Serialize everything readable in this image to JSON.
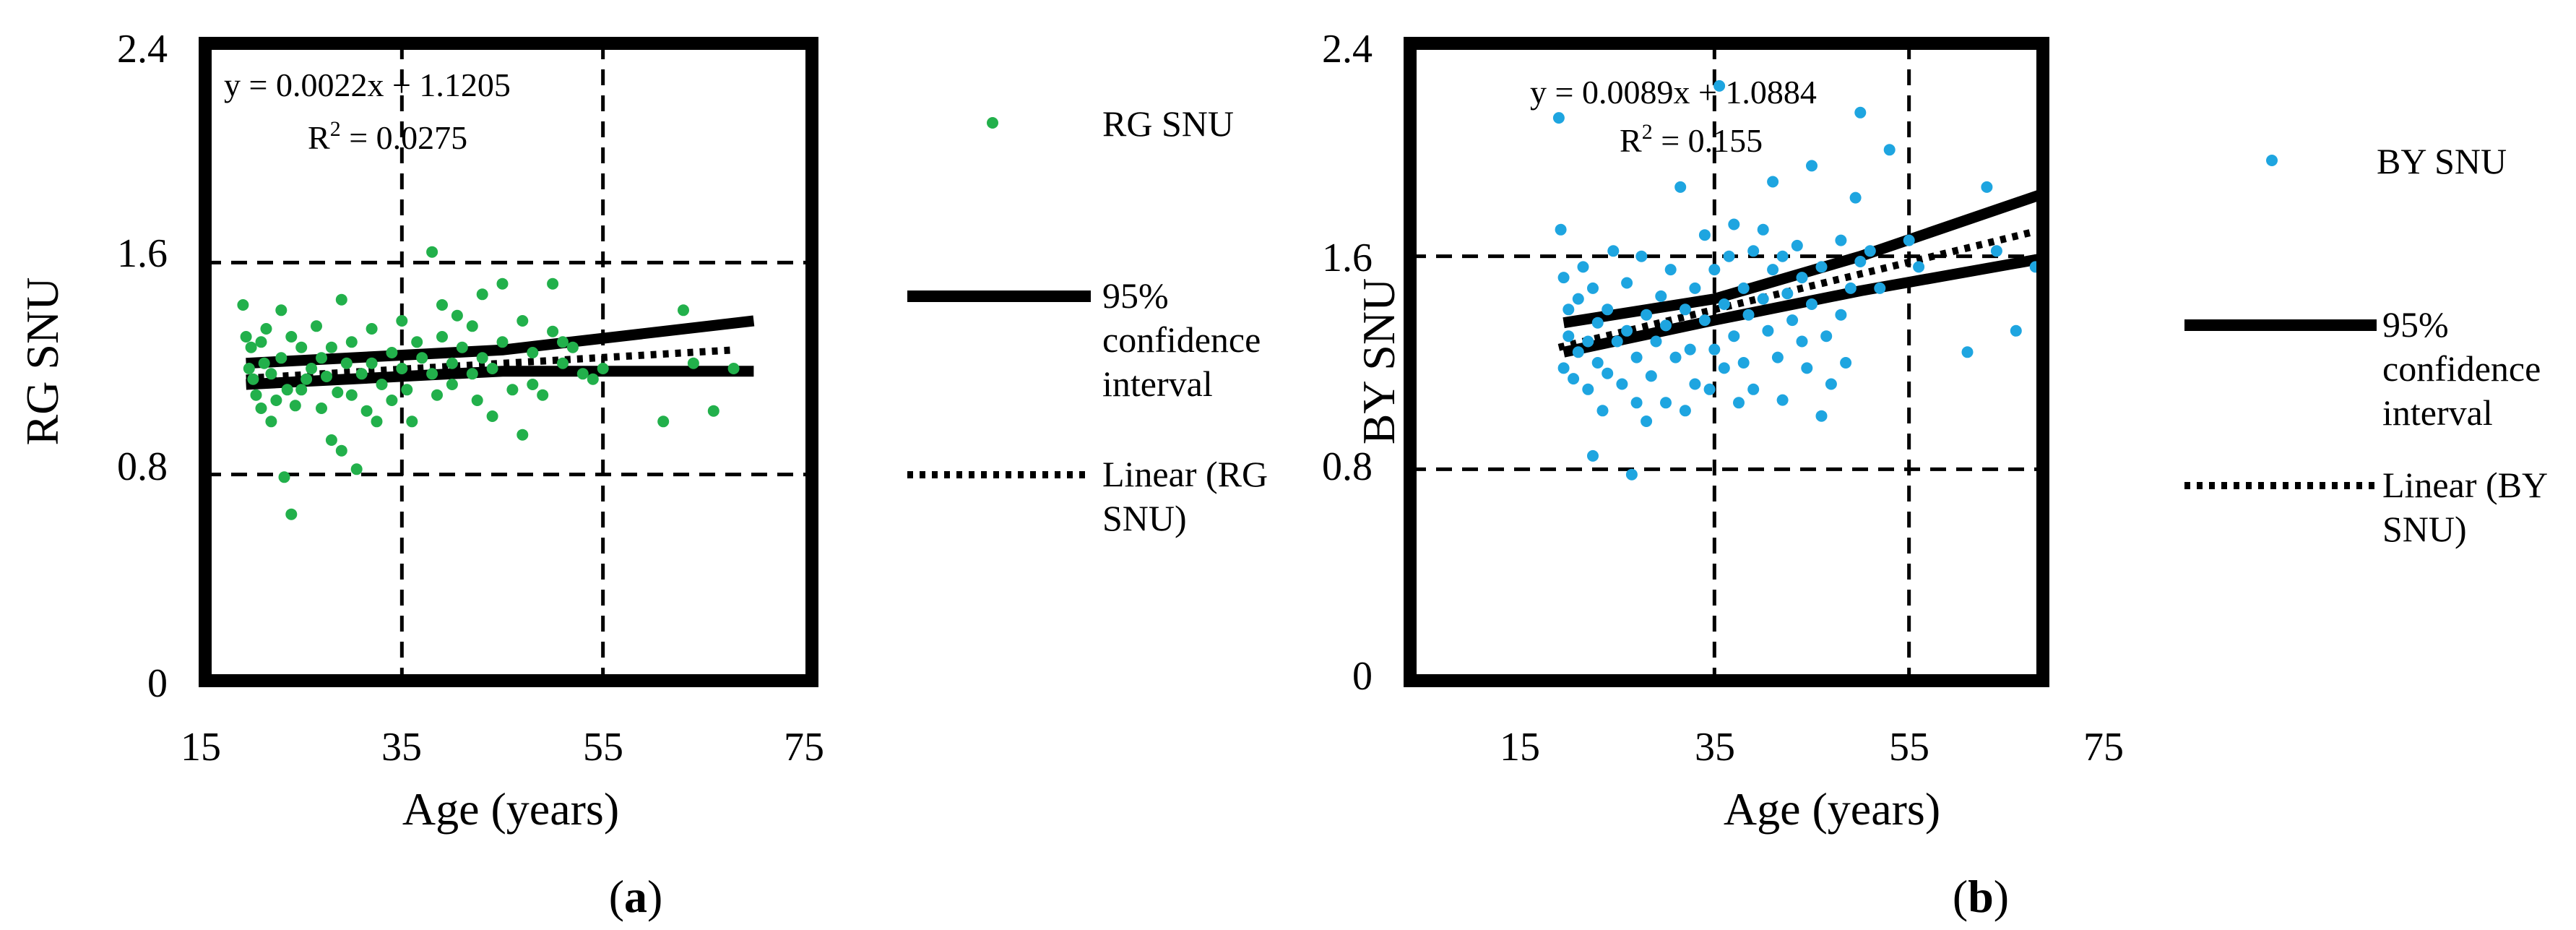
{
  "chart_data": [
    {
      "type": "scatter",
      "panel_label": "a",
      "xlabel": "Age (years)",
      "ylabel": "RG SNU",
      "xlim": [
        15,
        75
      ],
      "ylim": [
        0,
        2.4
      ],
      "xticks": [
        "15",
        "35",
        "55",
        "75"
      ],
      "yticks": [
        "0",
        "0.8",
        "1.6",
        "2.4"
      ],
      "grid": "dashed, both axes",
      "equation": "y = 0.0022x + 1.1205",
      "r2_prefix": "R",
      "r2_sup": "2",
      "r2_value": " = 0.0275",
      "legend_position": "right",
      "legend": {
        "scatter": "RG SNU",
        "ci": [
          "95%",
          "confidence",
          "interval"
        ],
        "linear": [
          "Linear (RG",
          "SNU)"
        ]
      },
      "colors": {
        "points": "#22b04b",
        "lines": "#000000"
      },
      "trend": {
        "slope": 0.0022,
        "intercept": 1.1205,
        "x": [
          19.5,
          68
        ]
      },
      "ci_upper": [
        [
          19.5,
          1.22
        ],
        [
          45,
          1.27
        ],
        [
          70,
          1.38
        ]
      ],
      "ci_lower": [
        [
          19.5,
          1.14
        ],
        [
          45,
          1.19
        ],
        [
          70,
          1.19
        ]
      ],
      "points": [
        [
          19.2,
          1.44
        ],
        [
          19.5,
          1.32
        ],
        [
          19.8,
          1.2
        ],
        [
          20,
          1.28
        ],
        [
          20.2,
          1.16
        ],
        [
          20.5,
          1.1
        ],
        [
          21,
          1.3
        ],
        [
          21,
          1.05
        ],
        [
          21.3,
          1.22
        ],
        [
          21.5,
          1.35
        ],
        [
          22,
          1.18
        ],
        [
          22,
          1.0
        ],
        [
          22.5,
          1.08
        ],
        [
          23,
          1.42
        ],
        [
          23,
          1.24
        ],
        [
          23.3,
          0.79
        ],
        [
          23.6,
          1.12
        ],
        [
          24,
          0.65
        ],
        [
          24,
          1.32
        ],
        [
          24.4,
          1.06
        ],
        [
          25,
          1.28
        ],
        [
          25,
          1.12
        ],
        [
          25.5,
          1.16
        ],
        [
          26,
          1.2
        ],
        [
          26.5,
          1.36
        ],
        [
          27,
          1.05
        ],
        [
          27,
          1.24
        ],
        [
          27.5,
          1.17
        ],
        [
          28,
          0.93
        ],
        [
          28,
          1.28
        ],
        [
          28.6,
          1.11
        ],
        [
          29,
          1.46
        ],
        [
          29,
          0.89
        ],
        [
          29.5,
          1.22
        ],
        [
          30,
          1.1
        ],
        [
          30,
          1.3
        ],
        [
          30.5,
          0.82
        ],
        [
          31,
          1.18
        ],
        [
          31.5,
          1.04
        ],
        [
          32,
          1.35
        ],
        [
          32,
          1.22
        ],
        [
          32.5,
          1.0
        ],
        [
          33,
          1.14
        ],
        [
          34,
          1.26
        ],
        [
          34,
          1.08
        ],
        [
          35,
          1.38
        ],
        [
          35,
          1.2
        ],
        [
          35.5,
          1.12
        ],
        [
          36,
          1.0
        ],
        [
          36.5,
          1.3
        ],
        [
          37,
          1.24
        ],
        [
          38,
          1.64
        ],
        [
          38,
          1.18
        ],
        [
          38.5,
          1.1
        ],
        [
          39,
          1.32
        ],
        [
          39,
          1.44
        ],
        [
          40,
          1.22
        ],
        [
          40,
          1.14
        ],
        [
          40.5,
          1.4
        ],
        [
          41,
          1.28
        ],
        [
          42,
          1.36
        ],
        [
          42,
          1.18
        ],
        [
          42.5,
          1.08
        ],
        [
          43,
          1.48
        ],
        [
          43,
          1.24
        ],
        [
          44,
          1.2
        ],
        [
          44,
          1.02
        ],
        [
          45,
          1.52
        ],
        [
          45,
          1.3
        ],
        [
          46,
          1.12
        ],
        [
          47,
          1.38
        ],
        [
          47,
          0.95
        ],
        [
          48,
          1.26
        ],
        [
          48,
          1.14
        ],
        [
          49,
          1.1
        ],
        [
          50,
          1.34
        ],
        [
          50,
          1.52
        ],
        [
          51,
          1.22
        ],
        [
          51,
          1.3
        ],
        [
          52,
          1.28
        ],
        [
          53,
          1.18
        ],
        [
          54,
          1.16
        ],
        [
          55,
          1.2
        ],
        [
          61,
          1.0
        ],
        [
          63,
          1.42
        ],
        [
          64,
          1.22
        ],
        [
          66,
          1.04
        ],
        [
          68,
          1.2
        ]
      ]
    },
    {
      "type": "scatter",
      "panel_label": "b",
      "xlabel": "Age (years)",
      "ylabel": "BY SNU",
      "xlim": [
        15,
        75
      ],
      "ylim": [
        0,
        2.4
      ],
      "xticks": [
        "15",
        "35",
        "55",
        "75"
      ],
      "yticks": [
        "0",
        "0.8",
        "1.6",
        "2.4"
      ],
      "grid": "dashed, both axes",
      "equation": "y = 0.0089x + 1.0884",
      "r2_prefix": "R",
      "r2_sup": "2",
      "r2_value": " = 0.155",
      "legend_position": "right",
      "legend": {
        "scatter": "BY SNU",
        "ci": [
          "95%",
          "confidence",
          "interval"
        ],
        "linear": [
          "Linear (BY",
          "SNU)"
        ]
      },
      "colors": {
        "points": "#1ea5e0",
        "lines": "#000000"
      },
      "trend": {
        "slope": 0.0089,
        "intercept": 1.0884,
        "x": [
          19,
          68
        ]
      },
      "ci_upper": [
        [
          19.5,
          1.35
        ],
        [
          35,
          1.44
        ],
        [
          50,
          1.6
        ],
        [
          70,
          1.85
        ]
      ],
      "ci_lower": [
        [
          19.5,
          1.24
        ],
        [
          35,
          1.36
        ],
        [
          50,
          1.47
        ],
        [
          70,
          1.6
        ]
      ],
      "points": [
        [
          19,
          2.12
        ],
        [
          19.2,
          1.7
        ],
        [
          19.5,
          1.52
        ],
        [
          19.5,
          1.18
        ],
        [
          20,
          1.4
        ],
        [
          20,
          1.3
        ],
        [
          20.5,
          1.14
        ],
        [
          21,
          1.44
        ],
        [
          21,
          1.24
        ],
        [
          21.5,
          1.56
        ],
        [
          22,
          1.28
        ],
        [
          22,
          1.1
        ],
        [
          22.5,
          1.48
        ],
        [
          22.5,
          0.85
        ],
        [
          23,
          1.35
        ],
        [
          23,
          1.2
        ],
        [
          23.5,
          1.02
        ],
        [
          24,
          1.16
        ],
        [
          24,
          1.4
        ],
        [
          24.6,
          1.62
        ],
        [
          25,
          1.28
        ],
        [
          25.5,
          1.12
        ],
        [
          26,
          1.5
        ],
        [
          26,
          1.32
        ],
        [
          26.5,
          0.78
        ],
        [
          27,
          1.05
        ],
        [
          27,
          1.22
        ],
        [
          27.5,
          1.6
        ],
        [
          28,
          1.38
        ],
        [
          28,
          0.98
        ],
        [
          28.5,
          1.15
        ],
        [
          29,
          1.28
        ],
        [
          29.5,
          1.45
        ],
        [
          30,
          1.05
        ],
        [
          30,
          1.34
        ],
        [
          30.5,
          1.55
        ],
        [
          31,
          1.22
        ],
        [
          31.5,
          1.86
        ],
        [
          32,
          1.02
        ],
        [
          32,
          1.4
        ],
        [
          32.5,
          1.25
        ],
        [
          33,
          1.48
        ],
        [
          33,
          1.12
        ],
        [
          34,
          1.68
        ],
        [
          34,
          1.36
        ],
        [
          34.5,
          1.1
        ],
        [
          35,
          1.55
        ],
        [
          35,
          1.25
        ],
        [
          35.5,
          2.24
        ],
        [
          36,
          1.42
        ],
        [
          36,
          1.18
        ],
        [
          36.5,
          1.6
        ],
        [
          37,
          1.72
        ],
        [
          37,
          1.3
        ],
        [
          37.5,
          1.05
        ],
        [
          38,
          1.48
        ],
        [
          38,
          1.2
        ],
        [
          38.5,
          1.38
        ],
        [
          39,
          1.62
        ],
        [
          39,
          1.1
        ],
        [
          40,
          1.7
        ],
        [
          40,
          1.44
        ],
        [
          40.5,
          1.32
        ],
        [
          41,
          1.88
        ],
        [
          41,
          1.55
        ],
        [
          41.5,
          1.22
        ],
        [
          42,
          1.6
        ],
        [
          42,
          1.06
        ],
        [
          42.5,
          1.46
        ],
        [
          43,
          1.36
        ],
        [
          43.5,
          1.64
        ],
        [
          44,
          1.52
        ],
        [
          44,
          1.28
        ],
        [
          44.5,
          1.18
        ],
        [
          45,
          1.94
        ],
        [
          45,
          1.42
        ],
        [
          46,
          1.0
        ],
        [
          46,
          1.56
        ],
        [
          46.5,
          1.3
        ],
        [
          47,
          1.12
        ],
        [
          48,
          1.66
        ],
        [
          48,
          1.38
        ],
        [
          48.5,
          1.2
        ],
        [
          49,
          1.48
        ],
        [
          49.5,
          1.82
        ],
        [
          50,
          2.14
        ],
        [
          50,
          1.58
        ],
        [
          51,
          1.62
        ],
        [
          52,
          1.48
        ],
        [
          53,
          2.0
        ],
        [
          55,
          1.66
        ],
        [
          56,
          1.56
        ],
        [
          61,
          1.24
        ],
        [
          63,
          1.86
        ],
        [
          64,
          1.62
        ],
        [
          66,
          1.32
        ],
        [
          68,
          1.56
        ]
      ]
    }
  ]
}
